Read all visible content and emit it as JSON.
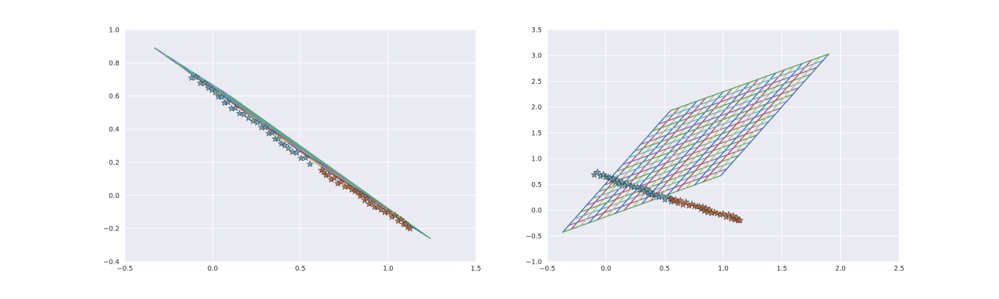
{
  "chart_data": [
    {
      "type": "line",
      "title": "",
      "xlabel": "",
      "ylabel": "",
      "xlim": [
        -0.5,
        1.5
      ],
      "ylim": [
        -0.4,
        1.0
      ],
      "xticks": [
        -0.5,
        0.0,
        0.5,
        1.0,
        1.5
      ],
      "yticks": [
        -0.4,
        -0.2,
        0.0,
        0.2,
        0.4,
        0.6,
        0.8,
        1.0
      ],
      "xtick_labels": [
        "−0.5",
        "0.0",
        "0.5",
        "1.0",
        "1.5"
      ],
      "ytick_labels": [
        "−0.4",
        "−0.2",
        "0.0",
        "0.2",
        "0.4",
        "0.6",
        "0.8",
        "1.0"
      ],
      "grid": true,
      "background": "#eaeaf2",
      "mesh_corners": {
        "a": [
          -0.33,
          0.89
        ],
        "b": [
          0.1,
          0.6
        ],
        "c": [
          1.24,
          -0.26
        ],
        "d": [
          0.81,
          0.03
        ]
      },
      "mesh_divisions": 18,
      "series": [
        {
          "marker": "star",
          "color": "#5ea7c6",
          "x": [
            -0.12,
            0.55
          ],
          "y": [
            0.72,
            0.2
          ]
        },
        {
          "marker": "star",
          "color": "#d0682c",
          "x": [
            0.62,
            1.13
          ],
          "y": [
            0.15,
            -0.2
          ]
        }
      ]
    },
    {
      "type": "line",
      "title": "",
      "xlabel": "",
      "ylabel": "",
      "xlim": [
        -0.5,
        2.5
      ],
      "ylim": [
        -1.0,
        3.5
      ],
      "xticks": [
        -0.5,
        0.0,
        0.5,
        1.0,
        1.5,
        2.0,
        2.5
      ],
      "yticks": [
        -1.0,
        -0.5,
        0.0,
        0.5,
        1.0,
        1.5,
        2.0,
        2.5,
        3.0,
        3.5
      ],
      "xtick_labels": [
        "−0.5",
        "0.0",
        "0.5",
        "1.0",
        "1.5",
        "2.0",
        "2.5"
      ],
      "ytick_labels": [
        "−1.0",
        "−0.5",
        "0.0",
        "0.5",
        "1.0",
        "1.5",
        "2.0",
        "2.5",
        "3.0",
        "3.5"
      ],
      "grid": true,
      "background": "#eaeaf2",
      "mesh_corners": {
        "a": [
          -0.37,
          -0.43
        ],
        "b": [
          0.55,
          1.93
        ],
        "c": [
          1.9,
          3.03
        ],
        "d": [
          0.98,
          0.67
        ]
      },
      "mesh_divisions": 18,
      "series": [
        {
          "marker": "star",
          "color": "#5ea7c6",
          "x": [
            -0.1,
            0.55
          ],
          "y": [
            0.72,
            0.2
          ]
        },
        {
          "marker": "star",
          "color": "#d0682c",
          "x": [
            0.55,
            1.15
          ],
          "y": [
            0.22,
            -0.2
          ]
        }
      ]
    }
  ],
  "palette": [
    "#4c72b0",
    "#55a868",
    "#c44e52",
    "#8172b2",
    "#ccb974",
    "#64b5cd"
  ]
}
